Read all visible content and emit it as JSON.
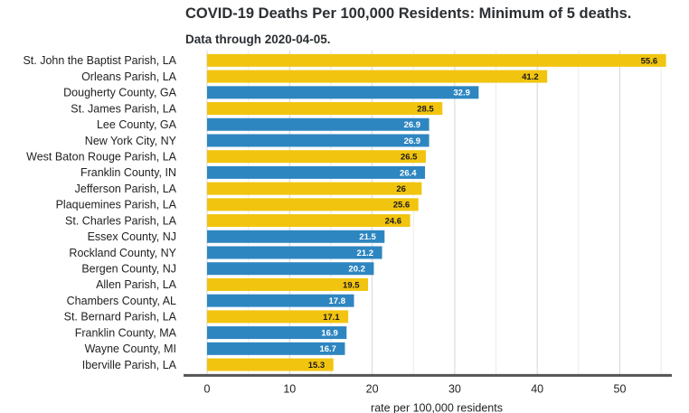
{
  "chart_data": {
    "type": "bar",
    "orientation": "horizontal",
    "title": "COVID-19 Deaths Per 100,000 Residents: Minimum of 5 deaths.",
    "subtitle": "Data through 2020-04-05.",
    "xlabel": "rate per 100,000 residents",
    "ylabel": "",
    "xlim": [
      0,
      56
    ],
    "xticks": [
      0,
      10,
      20,
      30,
      40,
      50
    ],
    "grid": true,
    "legend": "none",
    "colors": {
      "LA": "#f1c40f",
      "other": "#2e86c1"
    },
    "categories": [
      "St. John the Baptist Parish, LA",
      "Orleans Parish, LA",
      "Dougherty County, GA",
      "St. James Parish, LA",
      "Lee County, GA",
      "New York City, NY",
      "West Baton Rouge Parish, LA",
      "Franklin County, IN",
      "Jefferson Parish, LA",
      "Plaquemines Parish, LA",
      "St. Charles Parish, LA",
      "Essex County, NJ",
      "Rockland County, NY",
      "Bergen County, NJ",
      "Allen Parish, LA",
      "Chambers County, AL",
      "St. Bernard Parish, LA",
      "Franklin County, MA",
      "Wayne County, MI",
      "Iberville Parish, LA"
    ],
    "values": [
      55.6,
      41.2,
      32.9,
      28.5,
      26.9,
      26.9,
      26.5,
      26.4,
      26,
      25.6,
      24.6,
      21.5,
      21.2,
      20.2,
      19.5,
      17.8,
      17.1,
      16.9,
      16.7,
      15.3
    ],
    "value_labels": [
      "55.6",
      "41.2",
      "32.9",
      "28.5",
      "26.9",
      "26.9",
      "26.5",
      "26.4",
      "26",
      "25.6",
      "24.6",
      "21.5",
      "21.2",
      "20.2",
      "19.5",
      "17.8",
      "17.1",
      "16.9",
      "16.7",
      "15.3"
    ],
    "bar_groups": [
      "LA",
      "LA",
      "other",
      "LA",
      "other",
      "other",
      "LA",
      "other",
      "LA",
      "LA",
      "LA",
      "other",
      "other",
      "other",
      "LA",
      "other",
      "LA",
      "other",
      "other",
      "LA"
    ]
  }
}
